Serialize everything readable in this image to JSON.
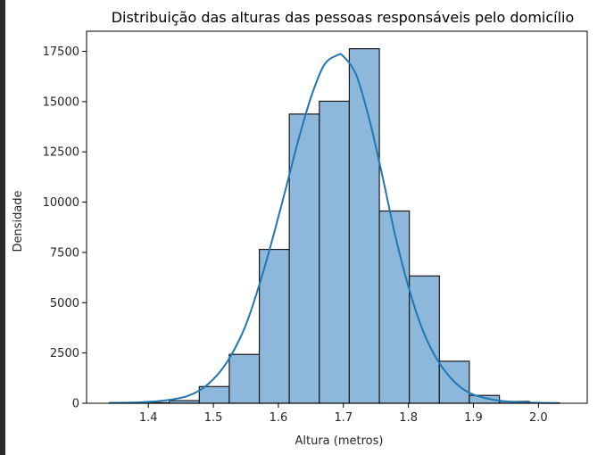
{
  "chart_data": {
    "type": "bar",
    "title": "Distribuição das alturas das pessoas responsáveis pelo domicílio",
    "xlabel": "Altura (metros)",
    "ylabel": "Densidade",
    "xlim": [
      1.305,
      2.075
    ],
    "ylim": [
      0,
      18500
    ],
    "xticks": [
      1.4,
      1.5,
      1.6,
      1.7,
      1.8,
      1.9,
      2.0
    ],
    "xtick_labels": [
      "1.4",
      "1.5",
      "1.6",
      "1.7",
      "1.8",
      "1.9",
      "2.0"
    ],
    "yticks": [
      0,
      2500,
      5000,
      7500,
      10000,
      12500,
      15000,
      17500
    ],
    "ytick_labels": [
      "0",
      "2500",
      "5000",
      "7500",
      "10000",
      "12500",
      "15000",
      "17500"
    ],
    "grid": false,
    "bins": [
      {
        "x0": 1.3399,
        "x1": 1.3861,
        "value": 10
      },
      {
        "x0": 1.3861,
        "x1": 1.4322,
        "value": 30
      },
      {
        "x0": 1.4322,
        "x1": 1.4784,
        "value": 130
      },
      {
        "x0": 1.4784,
        "x1": 1.5245,
        "value": 830
      },
      {
        "x0": 1.5245,
        "x1": 1.5707,
        "value": 2430
      },
      {
        "x0": 1.5707,
        "x1": 1.6168,
        "value": 7650
      },
      {
        "x0": 1.6168,
        "x1": 1.663,
        "value": 14380
      },
      {
        "x0": 1.663,
        "x1": 1.7091,
        "value": 15020
      },
      {
        "x0": 1.7091,
        "x1": 1.7553,
        "value": 17630
      },
      {
        "x0": 1.7553,
        "x1": 1.8014,
        "value": 9560
      },
      {
        "x0": 1.8014,
        "x1": 1.8476,
        "value": 6330
      },
      {
        "x0": 1.8476,
        "x1": 1.8937,
        "value": 2090
      },
      {
        "x0": 1.8937,
        "x1": 1.9399,
        "value": 390
      },
      {
        "x0": 1.9399,
        "x1": 1.986,
        "value": 90
      },
      {
        "x0": 1.986,
        "x1": 2.0322,
        "value": 20
      }
    ],
    "kde": {
      "x": [
        1.34,
        1.38,
        1.42,
        1.46,
        1.49,
        1.52,
        1.55,
        1.58,
        1.61,
        1.63,
        1.65,
        1.67,
        1.69,
        1.7,
        1.72,
        1.74,
        1.76,
        1.78,
        1.8,
        1.82,
        1.84,
        1.86,
        1.88,
        1.9,
        1.93,
        1.96,
        2.0,
        2.03
      ],
      "y": [
        20,
        40,
        120,
        360,
        900,
        2000,
        3900,
        6900,
        10500,
        13000,
        15200,
        16800,
        17300,
        17250,
        16300,
        14100,
        11300,
        8300,
        5800,
        3800,
        2400,
        1450,
        800,
        430,
        180,
        70,
        20,
        10
      ]
    },
    "colors": {
      "bar_fill": "#8db8dc",
      "bar_edge": "#1a1a1a",
      "kde_line": "#1f77b4"
    }
  }
}
